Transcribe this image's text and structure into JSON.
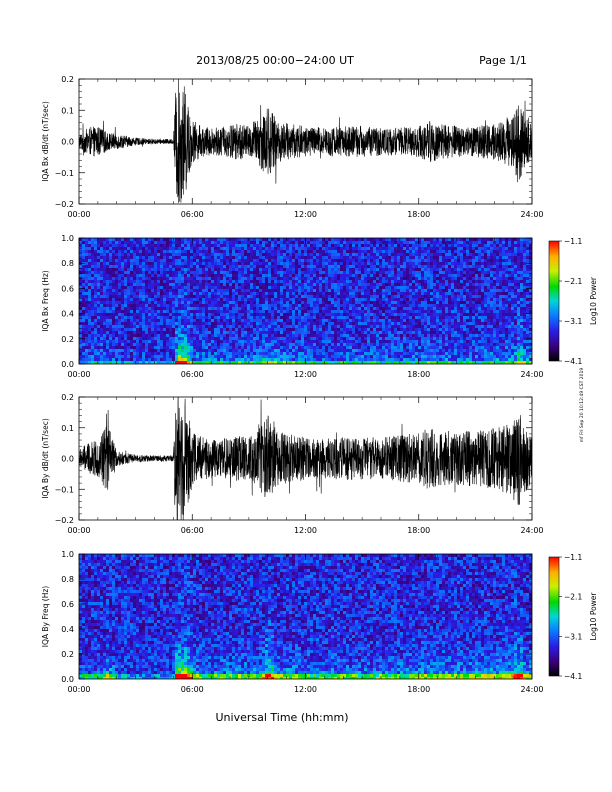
{
  "header": {
    "title": "2013/08/25  00:00−24:00 UT",
    "page": "Page 1/1"
  },
  "footer": {
    "xlabel": "Universal Time (hh:mm)",
    "side_note": "mf Fri Sep 20 10:12:49 CST 2019"
  },
  "chart_data": [
    {
      "type": "line",
      "ylabel": "IQA Bx dB/dt (nT/sec)",
      "xlim": [
        0,
        24
      ],
      "ylim": [
        -0.2,
        0.2
      ],
      "x_ticks": [
        "00:00",
        "06:00",
        "12:00",
        "18:00",
        "24:00"
      ],
      "y_ticks": [
        "−0.2",
        "−0.1",
        "0.0",
        "0.1",
        "0.2"
      ],
      "envelope": {
        "hours": [
          0,
          0.5,
          1,
          1.5,
          2,
          3,
          4,
          5,
          5.1,
          5.2,
          5.4,
          5.6,
          5.8,
          6,
          6.5,
          7,
          7.5,
          8,
          8.5,
          9,
          9.5,
          9.8,
          10,
          10.2,
          10.5,
          11,
          11.5,
          12,
          13,
          14,
          15,
          16,
          17,
          18,
          18.5,
          19,
          20,
          21,
          22,
          22.5,
          23,
          23.3,
          23.5,
          24
        ],
        "amplitude": [
          0.025,
          0.045,
          0.05,
          0.03,
          0.025,
          0.012,
          0.008,
          0.008,
          0.15,
          0.22,
          0.2,
          0.18,
          0.12,
          0.07,
          0.05,
          0.045,
          0.045,
          0.055,
          0.06,
          0.05,
          0.08,
          0.1,
          0.12,
          0.1,
          0.07,
          0.06,
          0.055,
          0.05,
          0.045,
          0.05,
          0.05,
          0.045,
          0.045,
          0.05,
          0.07,
          0.06,
          0.05,
          0.05,
          0.06,
          0.07,
          0.09,
          0.14,
          0.1,
          0.05
        ]
      }
    },
    {
      "type": "heatmap",
      "ylabel": "IQA Bx Freq (Hz)",
      "xlim": [
        0,
        24
      ],
      "ylim": [
        0,
        1
      ],
      "x_ticks": [
        "00:00",
        "06:00",
        "12:00",
        "18:00",
        "24:00"
      ],
      "y_ticks": [
        "0.0",
        "0.2",
        "0.4",
        "0.6",
        "0.8",
        "1.0"
      ],
      "colorbar": {
        "label": "Log10 Power",
        "range": [
          -4.1,
          -1.1
        ],
        "ticks": [
          "−1.1",
          "−2.1",
          "−3.1",
          "−4.1"
        ]
      }
    },
    {
      "type": "line",
      "ylabel": "IQA By dB/dt (nT/sec)",
      "xlim": [
        0,
        24
      ],
      "ylim": [
        -0.2,
        0.2
      ],
      "x_ticks": [
        "00:00",
        "06:00",
        "12:00",
        "18:00",
        "24:00"
      ],
      "y_ticks": [
        "−0.2",
        "−0.1",
        "0.0",
        "0.1",
        "0.2"
      ],
      "envelope": {
        "hours": [
          0,
          0.5,
          1,
          1.3,
          1.5,
          1.8,
          2,
          3,
          4,
          5,
          5.1,
          5.2,
          5.4,
          5.6,
          5.8,
          6,
          6.5,
          7,
          7.5,
          8,
          8.5,
          9,
          9.5,
          9.8,
          10,
          10.2,
          10.5,
          11,
          11.5,
          12,
          13,
          14,
          15,
          16,
          17,
          18,
          18.5,
          19,
          20,
          21,
          22,
          22.5,
          23,
          23.3,
          23.5,
          24
        ],
        "amplitude": [
          0.03,
          0.05,
          0.06,
          0.1,
          0.12,
          0.06,
          0.025,
          0.012,
          0.01,
          0.01,
          0.2,
          0.25,
          0.22,
          0.2,
          0.15,
          0.09,
          0.07,
          0.065,
          0.065,
          0.07,
          0.075,
          0.065,
          0.1,
          0.13,
          0.15,
          0.12,
          0.09,
          0.08,
          0.075,
          0.07,
          0.065,
          0.07,
          0.07,
          0.07,
          0.075,
          0.085,
          0.1,
          0.09,
          0.09,
          0.09,
          0.1,
          0.11,
          0.12,
          0.16,
          0.12,
          0.08
        ]
      }
    },
    {
      "type": "heatmap",
      "ylabel": "IQA By Freq (Hz)",
      "xlim": [
        0,
        24
      ],
      "ylim": [
        0,
        1
      ],
      "x_ticks": [
        "00:00",
        "06:00",
        "12:00",
        "18:00",
        "24:00"
      ],
      "y_ticks": [
        "0.0",
        "0.2",
        "0.4",
        "0.6",
        "0.8",
        "1.0"
      ],
      "colorbar": {
        "label": "Log10 Power",
        "range": [
          -4.1,
          -1.1
        ],
        "ticks": [
          "−1.1",
          "−2.1",
          "−3.1",
          "−4.1"
        ]
      }
    }
  ]
}
